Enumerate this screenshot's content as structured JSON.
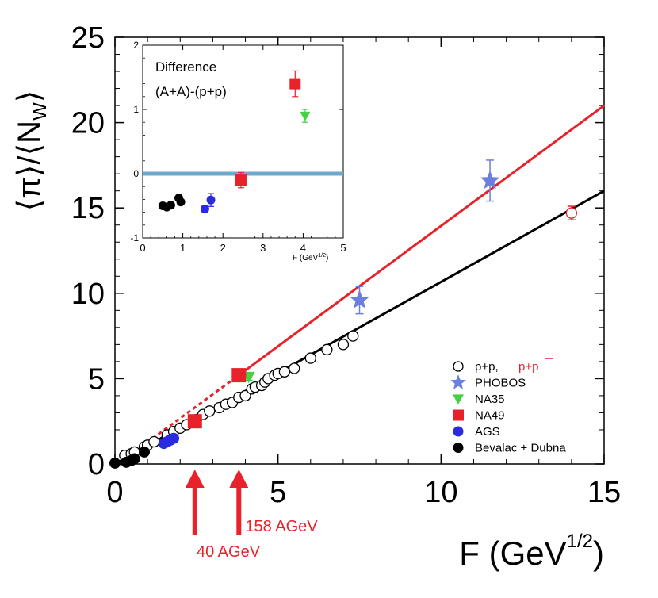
{
  "chart_data": {
    "type": "scatter",
    "ylabel": "⟨π⟩/⟨N_W⟩",
    "xlabel": "F (GeV^1/2)",
    "xlim": [
      0,
      15
    ],
    "ylim": [
      0,
      25
    ],
    "xticks": [
      "0",
      "5",
      "10",
      "15"
    ],
    "yticks": [
      "0",
      "5",
      "10",
      "15",
      "20",
      "25"
    ],
    "fit_lines": [
      {
        "name": "A+A fit",
        "color": "#e8212b",
        "x": [
          3.8,
          15
        ],
        "y": [
          5.2,
          21.0
        ]
      },
      {
        "name": "A+A fit extrapolation",
        "color": "#e8212b",
        "dashed": true,
        "x": [
          0.8,
          3.8
        ],
        "y": [
          1.0,
          5.2
        ]
      },
      {
        "name": "p+p fit",
        "color": "#000000",
        "x": [
          0.0,
          15
        ],
        "y": [
          0.0,
          16.0
        ]
      }
    ],
    "series": [
      {
        "name": "p+p",
        "marker": "open-circle",
        "color": "#000000",
        "x": [
          0.3,
          0.5,
          0.6,
          0.9,
          1.0,
          1.2,
          1.6,
          1.8,
          2.0,
          2.2,
          2.5,
          2.7,
          2.9,
          3.2,
          3.4,
          3.6,
          3.8,
          4.0,
          4.2,
          4.3,
          4.5,
          4.6,
          4.7,
          4.9,
          5.0,
          5.2,
          5.5,
          6.0,
          6.5,
          7.0,
          7.3
        ],
        "y": [
          0.5,
          0.6,
          0.7,
          1.0,
          1.1,
          1.3,
          1.7,
          1.9,
          2.1,
          2.3,
          2.6,
          2.9,
          3.1,
          3.3,
          3.5,
          3.6,
          3.9,
          4.0,
          4.4,
          4.5,
          4.6,
          4.8,
          5.0,
          5.2,
          5.3,
          5.4,
          5.6,
          6.2,
          6.7,
          7.0,
          7.5
        ]
      },
      {
        "name": "p+p̄",
        "marker": "open-circle",
        "color": "#e8212b",
        "x": [
          14.0
        ],
        "y": [
          14.7
        ],
        "err": [
          0.4
        ]
      },
      {
        "name": "PHOBOS",
        "marker": "star",
        "color": "#6b7fe0",
        "x": [
          7.5,
          11.5
        ],
        "y": [
          9.6,
          16.6
        ],
        "err": [
          0.8,
          1.2
        ]
      },
      {
        "name": "NA35",
        "marker": "triangle-down",
        "color": "#44d144",
        "x": [
          4.1
        ],
        "y": [
          5.1
        ],
        "err": [
          0.2
        ]
      },
      {
        "name": "NA49",
        "marker": "square",
        "color": "#e8212b",
        "x": [
          2.45,
          3.8
        ],
        "y": [
          2.5,
          5.2
        ]
      },
      {
        "name": "AGS",
        "marker": "filled-circle",
        "color": "#2a2ae0",
        "x": [
          1.5,
          1.6,
          1.7,
          1.8
        ],
        "y": [
          1.2,
          1.3,
          1.4,
          1.5
        ]
      },
      {
        "name": "Bevalac + Dubna",
        "marker": "filled-circle",
        "color": "#000000",
        "x": [
          0.0,
          0.35,
          0.5,
          0.6,
          0.9
        ],
        "y": [
          0.05,
          0.1,
          0.2,
          0.3,
          0.7
        ]
      }
    ],
    "legend": {
      "position": "bottom-right",
      "entries": [
        {
          "label": "p+p,",
          "extra": "p+p",
          "extra_overline": "p",
          "marker": "open-circle",
          "color": "#000000",
          "extra_color": "#e8212b"
        },
        {
          "label": "PHOBOS",
          "marker": "star",
          "color": "#6b7fe0"
        },
        {
          "label": "NA35",
          "marker": "triangle-down",
          "color": "#44d144"
        },
        {
          "label": "NA49",
          "marker": "square",
          "color": "#e8212b"
        },
        {
          "label": "AGS",
          "marker": "filled-circle",
          "color": "#2a2ae0"
        },
        {
          "label": "Bevalac + Dubna",
          "marker": "filled-circle",
          "color": "#000000"
        }
      ]
    },
    "annotations": [
      {
        "text": "40 AGeV",
        "x": 2.45,
        "color": "#e8212b"
      },
      {
        "text": "158 AGeV",
        "x": 3.8,
        "color": "#e8212b"
      }
    ],
    "inset": {
      "title": "Difference",
      "subtitle": "(A+A)-(p+p)",
      "xlabel": "F (GeV^1/2)",
      "xlim": [
        0,
        5
      ],
      "ylim": [
        -1,
        2
      ],
      "xticks": [
        "0",
        "1",
        "2",
        "3",
        "4",
        "5"
      ],
      "yticks": [
        "-1",
        "0",
        "1",
        "2"
      ],
      "zero_line_color": "#6fa8c8",
      "series": [
        {
          "name": "Bevalac + Dubna",
          "marker": "filled-circle",
          "color": "#000000",
          "x": [
            0.5,
            0.6,
            0.7,
            0.9,
            0.95
          ],
          "y": [
            -0.5,
            -0.52,
            -0.49,
            -0.38,
            -0.44
          ]
        },
        {
          "name": "AGS",
          "marker": "filled-circle",
          "color": "#2a2ae0",
          "x": [
            1.55,
            1.7
          ],
          "y": [
            -0.55,
            -0.41
          ],
          "err": [
            0.05,
            0.1
          ]
        },
        {
          "name": "NA49",
          "marker": "square",
          "color": "#e8212b",
          "x": [
            2.45,
            3.8
          ],
          "y": [
            -0.1,
            1.4
          ],
          "err": [
            0.12,
            0.2
          ]
        },
        {
          "name": "NA35",
          "marker": "triangle-down",
          "color": "#44d144",
          "x": [
            4.05
          ],
          "y": [
            0.9
          ],
          "err": [
            0.1
          ]
        }
      ]
    }
  }
}
